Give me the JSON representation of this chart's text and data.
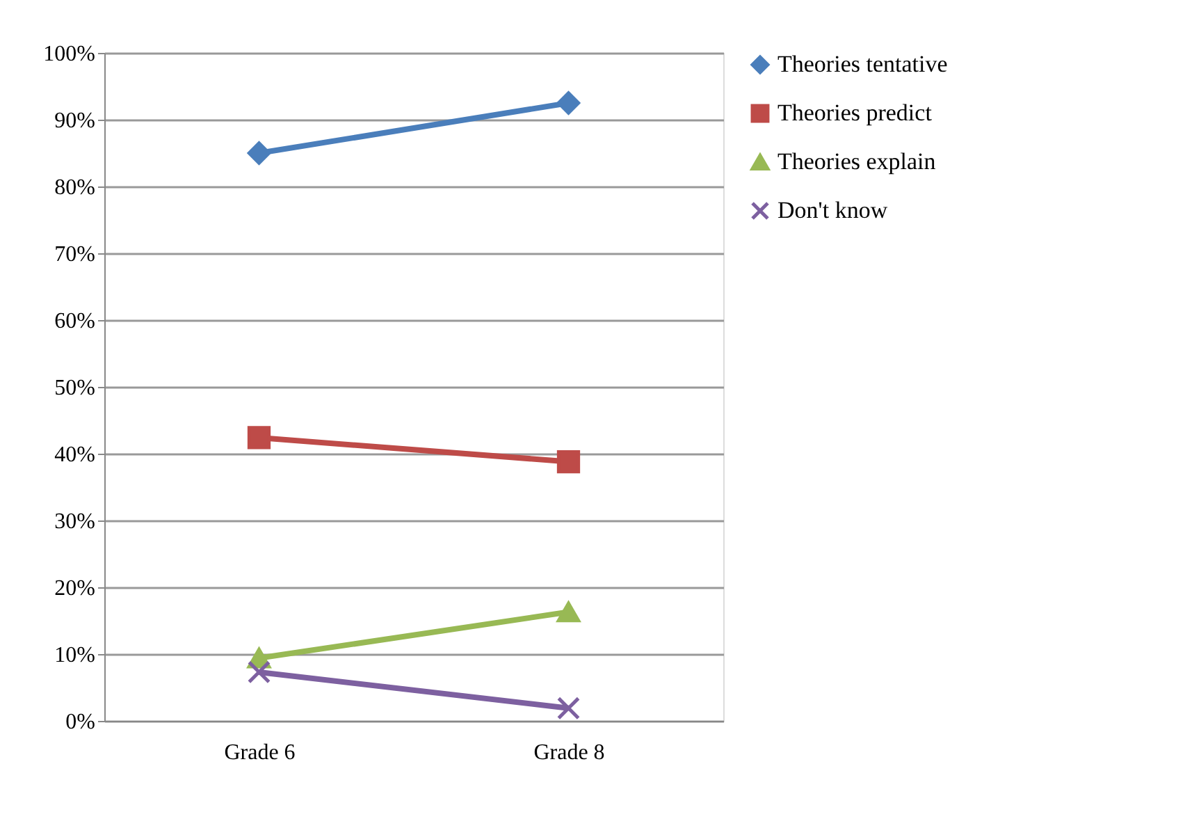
{
  "chart_data": {
    "type": "line",
    "categories": [
      "Grade 6",
      "Grade 8"
    ],
    "series": [
      {
        "name": "Theories tentative",
        "color": "#4a7ebb",
        "marker": "diamond",
        "values": [
          85.0,
          92.5
        ]
      },
      {
        "name": "Theories predict",
        "color": "#be4b48",
        "marker": "square",
        "values": [
          42.4,
          38.8
        ]
      },
      {
        "name": "Theories explain",
        "color": "#98b954",
        "marker": "triangle",
        "values": [
          9.4,
          16.3
        ]
      },
      {
        "name": "Don't know",
        "color": "#7d60a0",
        "marker": "cross",
        "values": [
          7.3,
          1.9
        ]
      }
    ],
    "ylim": [
      0,
      100
    ],
    "yticks": [
      {
        "value": 0,
        "label": "0%"
      },
      {
        "value": 10,
        "label": "10%"
      },
      {
        "value": 20,
        "label": "20%"
      },
      {
        "value": 30,
        "label": "30%"
      },
      {
        "value": 40,
        "label": "40%"
      },
      {
        "value": 50,
        "label": "50%"
      },
      {
        "value": 60,
        "label": "60%"
      },
      {
        "value": 70,
        "label": "70%"
      },
      {
        "value": 80,
        "label": "80%"
      },
      {
        "value": 90,
        "label": "90%"
      },
      {
        "value": 100,
        "label": "100%"
      }
    ],
    "grid": "y",
    "legend": "right",
    "line_style": "solid"
  }
}
